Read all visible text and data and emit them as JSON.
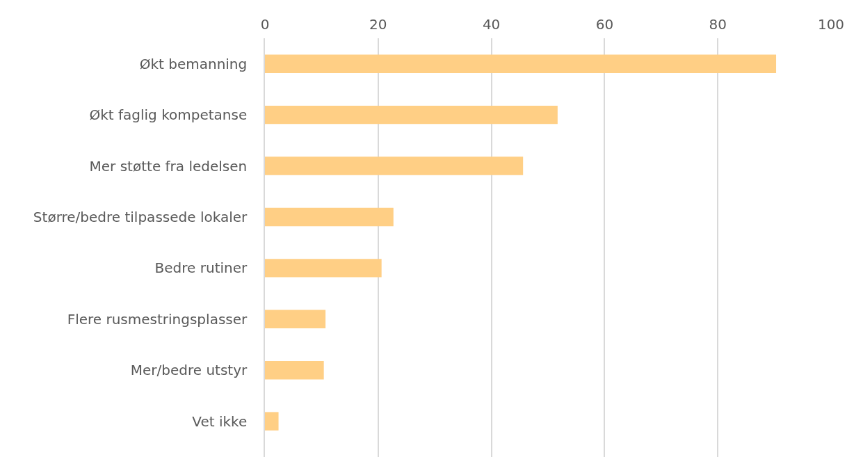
{
  "chart_data": {
    "type": "bar",
    "orientation": "horizontal",
    "categories": [
      "Økt bemanning",
      "Økt faglig kompetanse",
      "Mer støtte fra ledelsen",
      "Større/bedre tilpassede lokaler",
      "Bedre rutiner",
      "Flere rusmestringsplasser",
      "Mer/bedre utstyr",
      "Vet ikke"
    ],
    "values": [
      90.3,
      51.7,
      45.6,
      22.7,
      20.6,
      10.7,
      10.4,
      2.4
    ],
    "color": "#ffcf85",
    "xlim": [
      0,
      100
    ],
    "xticks": [
      0,
      20,
      40,
      60,
      80,
      100
    ],
    "grid": "x",
    "legend": false
  }
}
